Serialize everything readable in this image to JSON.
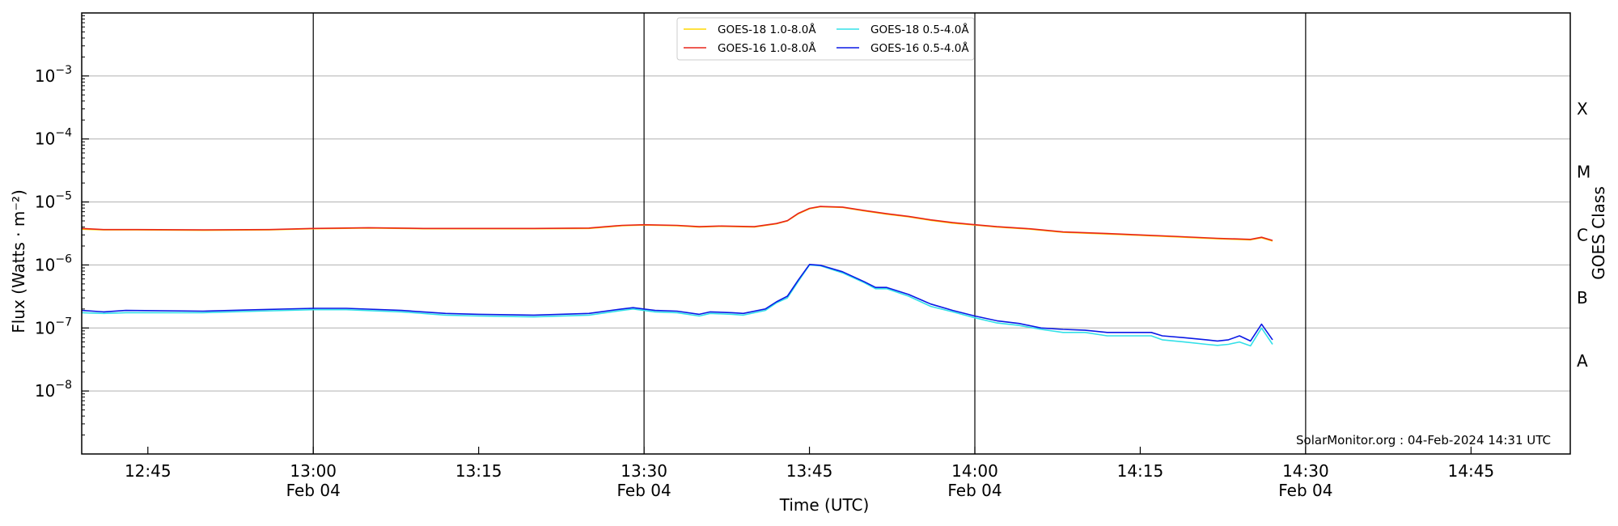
{
  "chart_data": {
    "type": "line",
    "xlabel": "Time (UTC)",
    "ylabel": "Flux (Watts · m⁻²)",
    "right_label": "GOES Class",
    "y_scale": "log",
    "ylim": [
      1e-09,
      0.01
    ],
    "xlim": [
      "12:39",
      "14:54"
    ],
    "grid": "horizontal major lines",
    "legend_position": "top-center",
    "x_ticks": [
      {
        "time": "12:45",
        "date": ""
      },
      {
        "time": "13:00",
        "date": "Feb 04"
      },
      {
        "time": "13:15",
        "date": ""
      },
      {
        "time": "13:30",
        "date": "Feb 04"
      },
      {
        "time": "13:45",
        "date": ""
      },
      {
        "time": "14:00",
        "date": "Feb 04"
      },
      {
        "time": "14:15",
        "date": ""
      },
      {
        "time": "14:30",
        "date": "Feb 04"
      },
      {
        "time": "14:45",
        "date": ""
      }
    ],
    "y_ticks": [
      {
        "value": 1e-08,
        "base": "10",
        "exp": "−8"
      },
      {
        "value": 1e-07,
        "base": "10",
        "exp": "−7"
      },
      {
        "value": 1e-06,
        "base": "10",
        "exp": "−6"
      },
      {
        "value": 1e-05,
        "base": "10",
        "exp": "−5"
      },
      {
        "value": 0.0001,
        "base": "10",
        "exp": "−4"
      },
      {
        "value": 0.001,
        "base": "10",
        "exp": "−3"
      }
    ],
    "goes_classes": [
      {
        "label": "A",
        "value": 3e-08
      },
      {
        "label": "B",
        "value": 3e-07
      },
      {
        "label": "C",
        "value": 3e-06
      },
      {
        "label": "M",
        "value": 3e-05
      },
      {
        "label": "X",
        "value": 0.0003
      }
    ],
    "vertical_markers": [
      "13:00",
      "13:30",
      "14:00",
      "14:30"
    ],
    "watermark": "SolarMonitor.org : 04-Feb-2024 14:31 UTC",
    "series": [
      {
        "name": "GOES-18 1.0-8.0Å",
        "color": "#ffd700",
        "points": [
          [
            "12:39",
            3.7e-06
          ],
          [
            "12:41",
            3.6e-06
          ],
          [
            "12:44",
            3.6e-06
          ],
          [
            "12:50",
            3.55e-06
          ],
          [
            "12:56",
            3.6e-06
          ],
          [
            "13:00",
            3.75e-06
          ],
          [
            "13:05",
            3.85e-06
          ],
          [
            "13:10",
            3.75e-06
          ],
          [
            "13:15",
            3.75e-06
          ],
          [
            "13:20",
            3.75e-06
          ],
          [
            "13:25",
            3.8e-06
          ],
          [
            "13:28",
            4.2e-06
          ],
          [
            "13:30",
            4.3e-06
          ],
          [
            "13:33",
            4.2e-06
          ],
          [
            "13:35",
            4e-06
          ],
          [
            "13:37",
            4.1e-06
          ],
          [
            "13:40",
            4e-06
          ],
          [
            "13:42",
            4.5e-06
          ],
          [
            "13:43",
            5e-06
          ],
          [
            "13:44",
            6.5e-06
          ],
          [
            "13:45",
            7.8e-06
          ],
          [
            "13:46",
            8.4e-06
          ],
          [
            "13:48",
            8.2e-06
          ],
          [
            "13:50",
            7.2e-06
          ],
          [
            "13:52",
            6.4e-06
          ],
          [
            "13:54",
            5.8e-06
          ],
          [
            "13:56",
            5.1e-06
          ],
          [
            "13:58",
            4.6e-06
          ],
          [
            "14:00",
            4.3e-06
          ],
          [
            "14:02",
            4e-06
          ],
          [
            "14:05",
            3.7e-06
          ],
          [
            "14:08",
            3.3e-06
          ],
          [
            "14:12",
            3.1e-06
          ],
          [
            "14:15",
            2.95e-06
          ],
          [
            "14:18",
            2.8e-06
          ],
          [
            "14:22",
            2.6e-06
          ],
          [
            "14:25",
            2.5e-06
          ],
          [
            "14:26",
            2.7e-06
          ],
          [
            "14:27",
            2.4e-06
          ]
        ]
      },
      {
        "name": "GOES-16 1.0-8.0Å",
        "color": "#e8251b",
        "points": [
          [
            "12:39",
            3.8e-06
          ],
          [
            "12:41",
            3.65e-06
          ],
          [
            "12:44",
            3.65e-06
          ],
          [
            "12:50",
            3.6e-06
          ],
          [
            "12:56",
            3.65e-06
          ],
          [
            "13:00",
            3.8e-06
          ],
          [
            "13:05",
            3.9e-06
          ],
          [
            "13:10",
            3.8e-06
          ],
          [
            "13:15",
            3.8e-06
          ],
          [
            "13:20",
            3.8e-06
          ],
          [
            "13:25",
            3.85e-06
          ],
          [
            "13:28",
            4.25e-06
          ],
          [
            "13:30",
            4.35e-06
          ],
          [
            "13:33",
            4.25e-06
          ],
          [
            "13:35",
            4.05e-06
          ],
          [
            "13:37",
            4.15e-06
          ],
          [
            "13:40",
            4.05e-06
          ],
          [
            "13:42",
            4.55e-06
          ],
          [
            "13:43",
            5.05e-06
          ],
          [
            "13:44",
            6.6e-06
          ],
          [
            "13:45",
            7.9e-06
          ],
          [
            "13:46",
            8.5e-06
          ],
          [
            "13:48",
            8.3e-06
          ],
          [
            "13:50",
            7.3e-06
          ],
          [
            "13:52",
            6.5e-06
          ],
          [
            "13:54",
            5.9e-06
          ],
          [
            "13:56",
            5.2e-06
          ],
          [
            "13:58",
            4.7e-06
          ],
          [
            "14:00",
            4.35e-06
          ],
          [
            "14:02",
            4.05e-06
          ],
          [
            "14:05",
            3.75e-06
          ],
          [
            "14:08",
            3.35e-06
          ],
          [
            "14:12",
            3.15e-06
          ],
          [
            "14:15",
            3e-06
          ],
          [
            "14:18",
            2.85e-06
          ],
          [
            "14:22",
            2.65e-06
          ],
          [
            "14:25",
            2.55e-06
          ],
          [
            "14:26",
            2.75e-06
          ],
          [
            "14:27",
            2.45e-06
          ]
        ]
      },
      {
        "name": "GOES-18 0.5-4.0Å",
        "color": "#33e0e8",
        "points": [
          [
            "12:39",
            1.75e-07
          ],
          [
            "12:41",
            1.7e-07
          ],
          [
            "12:43",
            1.75e-07
          ],
          [
            "12:50",
            1.75e-07
          ],
          [
            "12:55",
            1.85e-07
          ],
          [
            "13:00",
            1.95e-07
          ],
          [
            "13:03",
            1.95e-07
          ],
          [
            "13:08",
            1.8e-07
          ],
          [
            "13:12",
            1.6e-07
          ],
          [
            "13:15",
            1.55e-07
          ],
          [
            "13:20",
            1.5e-07
          ],
          [
            "13:25",
            1.6e-07
          ],
          [
            "13:28",
            1.9e-07
          ],
          [
            "13:29",
            2e-07
          ],
          [
            "13:31",
            1.8e-07
          ],
          [
            "13:33",
            1.75e-07
          ],
          [
            "13:35",
            1.55e-07
          ],
          [
            "13:36",
            1.7e-07
          ],
          [
            "13:38",
            1.65e-07
          ],
          [
            "13:39",
            1.6e-07
          ],
          [
            "13:41",
            1.9e-07
          ],
          [
            "13:42",
            2.5e-07
          ],
          [
            "13:43",
            3e-07
          ],
          [
            "13:44",
            5.5e-07
          ],
          [
            "13:45",
            1e-06
          ],
          [
            "13:46",
            9.7e-07
          ],
          [
            "13:48",
            7.5e-07
          ],
          [
            "13:50",
            5.2e-07
          ],
          [
            "13:51",
            4.2e-07
          ],
          [
            "13:52",
            4.2e-07
          ],
          [
            "13:54",
            3.2e-07
          ],
          [
            "13:56",
            2.2e-07
          ],
          [
            "13:58",
            1.8e-07
          ],
          [
            "14:00",
            1.45e-07
          ],
          [
            "14:02",
            1.2e-07
          ],
          [
            "14:04",
            1.1e-07
          ],
          [
            "14:06",
            9.5e-08
          ],
          [
            "14:08",
            8.5e-08
          ],
          [
            "14:10",
            8.5e-08
          ],
          [
            "14:12",
            7.5e-08
          ],
          [
            "14:14",
            7.5e-08
          ],
          [
            "14:16",
            7.5e-08
          ],
          [
            "14:17",
            6.5e-08
          ],
          [
            "14:19",
            6e-08
          ],
          [
            "14:21",
            5.5e-08
          ],
          [
            "14:22",
            5.3e-08
          ],
          [
            "14:23",
            5.5e-08
          ],
          [
            "14:24",
            6e-08
          ],
          [
            "14:25",
            5.2e-08
          ],
          [
            "14:26",
            1e-07
          ],
          [
            "14:27",
            5.5e-08
          ]
        ]
      },
      {
        "name": "GOES-16 0.5-4.0Å",
        "color": "#0a19e6",
        "points": [
          [
            "12:39",
            1.9e-07
          ],
          [
            "12:41",
            1.8e-07
          ],
          [
            "12:43",
            1.9e-07
          ],
          [
            "12:50",
            1.85e-07
          ],
          [
            "12:55",
            1.95e-07
          ],
          [
            "13:00",
            2.05e-07
          ],
          [
            "13:03",
            2.05e-07
          ],
          [
            "13:08",
            1.9e-07
          ],
          [
            "13:12",
            1.7e-07
          ],
          [
            "13:15",
            1.65e-07
          ],
          [
            "13:20",
            1.6e-07
          ],
          [
            "13:25",
            1.7e-07
          ],
          [
            "13:28",
            2e-07
          ],
          [
            "13:29",
            2.1e-07
          ],
          [
            "13:31",
            1.9e-07
          ],
          [
            "13:33",
            1.85e-07
          ],
          [
            "13:35",
            1.65e-07
          ],
          [
            "13:36",
            1.8e-07
          ],
          [
            "13:38",
            1.75e-07
          ],
          [
            "13:39",
            1.7e-07
          ],
          [
            "13:41",
            2e-07
          ],
          [
            "13:42",
            2.6e-07
          ],
          [
            "13:43",
            3.2e-07
          ],
          [
            "13:44",
            5.8e-07
          ],
          [
            "13:45",
            1.02e-06
          ],
          [
            "13:46",
            9.9e-07
          ],
          [
            "13:48",
            7.8e-07
          ],
          [
            "13:50",
            5.4e-07
          ],
          [
            "13:51",
            4.4e-07
          ],
          [
            "13:52",
            4.4e-07
          ],
          [
            "13:54",
            3.4e-07
          ],
          [
            "13:56",
            2.4e-07
          ],
          [
            "13:58",
            1.9e-07
          ],
          [
            "14:00",
            1.55e-07
          ],
          [
            "14:02",
            1.3e-07
          ],
          [
            "14:04",
            1.18e-07
          ],
          [
            "14:06",
            1e-07
          ],
          [
            "14:08",
            9.5e-08
          ],
          [
            "14:10",
            9.2e-08
          ],
          [
            "14:12",
            8.5e-08
          ],
          [
            "14:14",
            8.5e-08
          ],
          [
            "14:16",
            8.5e-08
          ],
          [
            "14:17",
            7.5e-08
          ],
          [
            "14:19",
            7e-08
          ],
          [
            "14:21",
            6.5e-08
          ],
          [
            "14:22",
            6.2e-08
          ],
          [
            "14:23",
            6.5e-08
          ],
          [
            "14:24",
            7.5e-08
          ],
          [
            "14:25",
            6.2e-08
          ],
          [
            "14:26",
            1.15e-07
          ],
          [
            "14:27",
            6.5e-08
          ]
        ]
      }
    ]
  }
}
